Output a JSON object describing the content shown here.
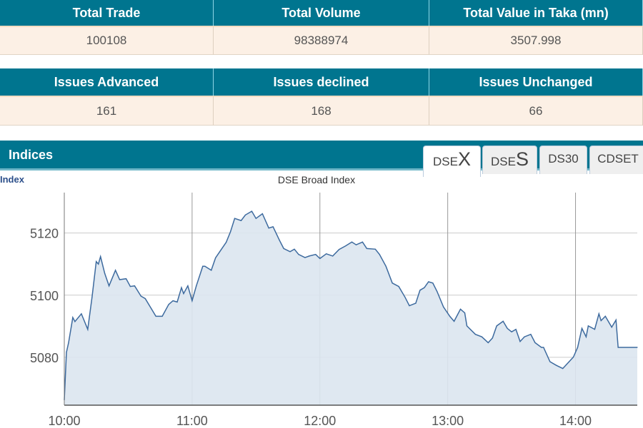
{
  "summary1": {
    "headers": [
      "Total Trade",
      "Total Volume",
      "Total Value in Taka (mn)"
    ],
    "values": [
      "100108",
      "98388974",
      "3507.998"
    ]
  },
  "summary2": {
    "headers": [
      "Issues Advanced",
      "Issues declined",
      "Issues Unchanged"
    ],
    "values": [
      "161",
      "168",
      "66"
    ]
  },
  "indices": {
    "title": "Indices",
    "tabs": [
      {
        "prefix": "DSE",
        "suffix": "X",
        "active": true
      },
      {
        "prefix": "DSE",
        "suffix": "S",
        "active": false
      },
      {
        "prefix": "DS30",
        "suffix": "",
        "active": false
      },
      {
        "prefix": "CDSET",
        "suffix": "",
        "active": false
      }
    ]
  },
  "colors": {
    "header": "#00758f",
    "row": "#fcf0e5",
    "line": "#3d6a9e",
    "fill": "#dce6f0"
  },
  "chart_data": {
    "type": "area",
    "title": "DSE Broad Index",
    "ylabel": "Index",
    "xlabel": "",
    "xticks": [
      "10:00",
      "11:00",
      "12:00",
      "13:00",
      "14:00"
    ],
    "yticks": [
      5080,
      5100,
      5120
    ],
    "xlim": [
      "10:00",
      "14:29"
    ],
    "ylim": [
      5064.6,
      5133
    ],
    "grid": true,
    "points": [
      [
        "10:00",
        5066.3
      ],
      [
        "10:01",
        5081.6
      ],
      [
        "10:02",
        5084.7
      ],
      [
        "10:04",
        5092.8
      ],
      [
        "10:05",
        5091.5
      ],
      [
        "10:08",
        5094
      ],
      [
        "10:11",
        5089
      ],
      [
        "10:13",
        5099.3
      ],
      [
        "10:15",
        5110.8
      ],
      [
        "10:16",
        5110
      ],
      [
        "10:17",
        5112.4
      ],
      [
        "10:19",
        5107
      ],
      [
        "10:21",
        5103
      ],
      [
        "10:24",
        5108
      ],
      [
        "10:26",
        5105
      ],
      [
        "10:29",
        5105.3
      ],
      [
        "10:31",
        5102.8
      ],
      [
        "10:33",
        5103
      ],
      [
        "10:36",
        5099.7
      ],
      [
        "10:38",
        5098.9
      ],
      [
        "10:41",
        5095.5
      ],
      [
        "10:43",
        5093.2
      ],
      [
        "10:46",
        5093.2
      ],
      [
        "10:49",
        5097
      ],
      [
        "10:51",
        5098.2
      ],
      [
        "10:53",
        5097.8
      ],
      [
        "10:55",
        5102.4
      ],
      [
        "10:56",
        5100.5
      ],
      [
        "10:58",
        5103
      ],
      [
        "11:00",
        5098.2
      ],
      [
        "11:02",
        5103
      ],
      [
        "11:05",
        5109.3
      ],
      [
        "11:06",
        5109.3
      ],
      [
        "11:09",
        5108
      ],
      [
        "11:11",
        5112
      ],
      [
        "11:13",
        5114
      ],
      [
        "11:16",
        5117
      ],
      [
        "11:18",
        5120.4
      ],
      [
        "11:20",
        5124.7
      ],
      [
        "11:23",
        5124
      ],
      [
        "11:25",
        5125.8
      ],
      [
        "11:28",
        5127
      ],
      [
        "11:30",
        5124.7
      ],
      [
        "11:33",
        5126.2
      ],
      [
        "11:36",
        5121.6
      ],
      [
        "11:38",
        5122
      ],
      [
        "11:41",
        5117.7
      ],
      [
        "11:43",
        5115
      ],
      [
        "11:46",
        5114
      ],
      [
        "11:48",
        5114.8
      ],
      [
        "11:50",
        5113.1
      ],
      [
        "11:53",
        5112.1
      ],
      [
        "11:55",
        5112.6
      ],
      [
        "11:58",
        5113.1
      ],
      [
        "12:00",
        5111.8
      ],
      [
        "12:03",
        5113.3
      ],
      [
        "12:06",
        5112.6
      ],
      [
        "12:09",
        5114.7
      ],
      [
        "12:12",
        5115.8
      ],
      [
        "12:15",
        5117.1
      ],
      [
        "12:17",
        5116.2
      ],
      [
        "12:20",
        5117.1
      ],
      [
        "12:22",
        5115
      ],
      [
        "12:26",
        5114.8
      ],
      [
        "12:28",
        5113.1
      ],
      [
        "12:31",
        5109.3
      ],
      [
        "12:34",
        5103.9
      ],
      [
        "12:37",
        5102.8
      ],
      [
        "12:40",
        5099.3
      ],
      [
        "12:42",
        5096.6
      ],
      [
        "12:45",
        5097.4
      ],
      [
        "12:47",
        5101.6
      ],
      [
        "12:49",
        5102.4
      ],
      [
        "12:51",
        5104.3
      ],
      [
        "12:53",
        5103.9
      ],
      [
        "12:55",
        5101.2
      ],
      [
        "12:58",
        5096.2
      ],
      [
        "13:01",
        5093.2
      ],
      [
        "13:03",
        5091.6
      ],
      [
        "13:06",
        5095.5
      ],
      [
        "13:08",
        5094.3
      ],
      [
        "13:09",
        5090.1
      ],
      [
        "13:13",
        5087.4
      ],
      [
        "13:16",
        5086.6
      ],
      [
        "13:19",
        5084.7
      ],
      [
        "13:21",
        5086.2
      ],
      [
        "13:23",
        5090.1
      ],
      [
        "13:26",
        5091.6
      ],
      [
        "13:28",
        5089.3
      ],
      [
        "13:30",
        5088.2
      ],
      [
        "13:32",
        5089
      ],
      [
        "13:34",
        5085.1
      ],
      [
        "13:36",
        5086.6
      ],
      [
        "13:39",
        5087.4
      ],
      [
        "13:41",
        5084.7
      ],
      [
        "13:44",
        5083.2
      ],
      [
        "13:45",
        5083.2
      ],
      [
        "13:48",
        5078.6
      ],
      [
        "13:51",
        5077.4
      ],
      [
        "13:54",
        5076.4
      ],
      [
        "13:57",
        5078.6
      ],
      [
        "13:59",
        5080.1
      ],
      [
        "14:01",
        5083.2
      ],
      [
        "14:03",
        5089.3
      ],
      [
        "14:05",
        5086.6
      ],
      [
        "14:06",
        5090.1
      ],
      [
        "14:09",
        5089
      ],
      [
        "14:11",
        5094
      ],
      [
        "14:12",
        5091.8
      ],
      [
        "14:14",
        5093.2
      ],
      [
        "14:17",
        5089.7
      ],
      [
        "14:19",
        5092
      ],
      [
        "14:20",
        5083.2
      ],
      [
        "14:29",
        5083.2
      ]
    ]
  }
}
